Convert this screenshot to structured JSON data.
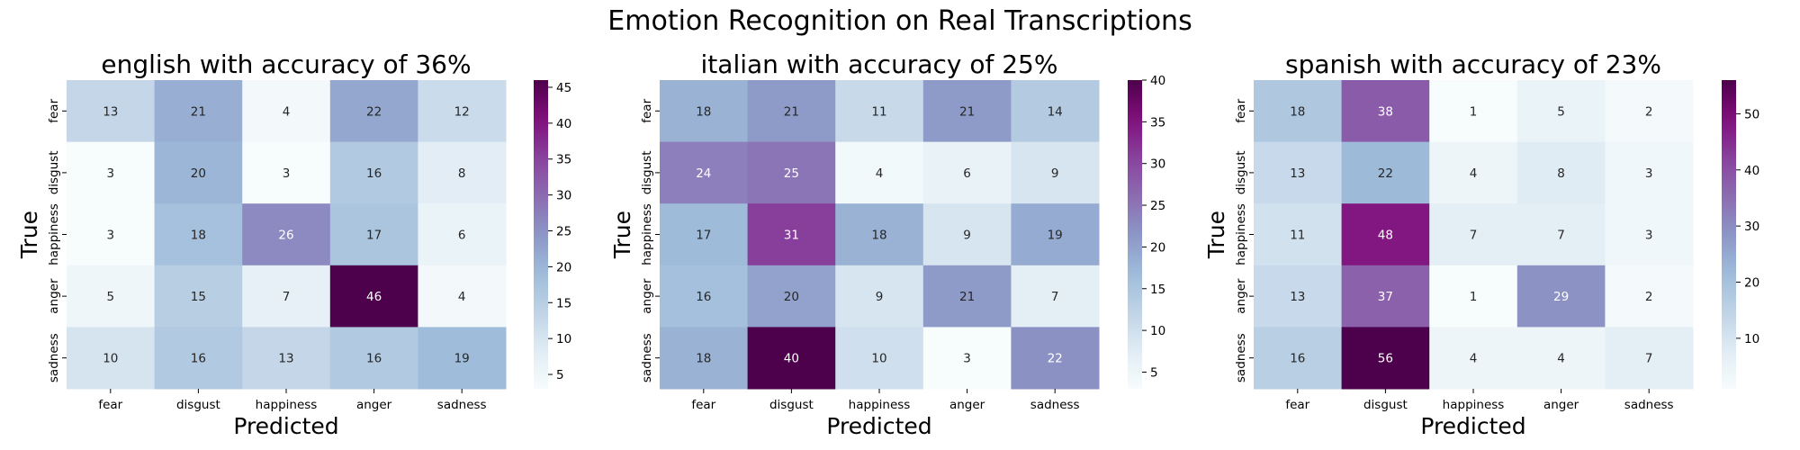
{
  "suptitle": "Emotion Recognition on Real Transcriptions",
  "chart_data": [
    {
      "type": "heatmap",
      "title": "english with accuracy of 36%",
      "xlabel": "Predicted",
      "ylabel": "True",
      "x_categories": [
        "fear",
        "disgust",
        "happiness",
        "anger",
        "sadness"
      ],
      "y_categories": [
        "fear",
        "disgust",
        "happiness",
        "anger",
        "sadness"
      ],
      "values": [
        [
          13,
          21,
          4,
          22,
          12
        ],
        [
          3,
          20,
          3,
          16,
          8
        ],
        [
          3,
          18,
          26,
          17,
          6
        ],
        [
          5,
          15,
          7,
          46,
          4
        ],
        [
          10,
          16,
          13,
          16,
          19
        ]
      ],
      "colormap": "BuPu",
      "colorbar": {
        "min": 3,
        "max": 46,
        "ticks": [
          5,
          10,
          15,
          20,
          25,
          30,
          35,
          40,
          45
        ]
      }
    },
    {
      "type": "heatmap",
      "title": "italian with accuracy of 25%",
      "xlabel": "Predicted",
      "ylabel": "True",
      "x_categories": [
        "fear",
        "disgust",
        "happiness",
        "anger",
        "sadness"
      ],
      "y_categories": [
        "fear",
        "disgust",
        "happiness",
        "anger",
        "sadness"
      ],
      "values": [
        [
          18,
          21,
          11,
          21,
          14
        ],
        [
          24,
          25,
          4,
          6,
          9
        ],
        [
          17,
          31,
          18,
          9,
          19
        ],
        [
          16,
          20,
          9,
          21,
          7
        ],
        [
          18,
          40,
          10,
          3,
          22
        ]
      ],
      "colormap": "BuPu",
      "colorbar": {
        "min": 3,
        "max": 40,
        "ticks": [
          5,
          10,
          15,
          20,
          25,
          30,
          35,
          40
        ]
      }
    },
    {
      "type": "heatmap",
      "title": "spanish with accuracy of 23%",
      "xlabel": "Predicted",
      "ylabel": "True",
      "x_categories": [
        "fear",
        "disgust",
        "happiness",
        "anger",
        "sadness"
      ],
      "y_categories": [
        "fear",
        "disgust",
        "happiness",
        "anger",
        "sadness"
      ],
      "values": [
        [
          18,
          38,
          1,
          5,
          2
        ],
        [
          13,
          22,
          4,
          8,
          3
        ],
        [
          11,
          48,
          7,
          7,
          3
        ],
        [
          13,
          37,
          1,
          29,
          2
        ],
        [
          16,
          56,
          4,
          4,
          7
        ]
      ],
      "colormap": "BuPu",
      "colorbar": {
        "min": 1,
        "max": 56,
        "ticks": [
          10,
          20,
          30,
          40,
          50
        ]
      }
    }
  ]
}
